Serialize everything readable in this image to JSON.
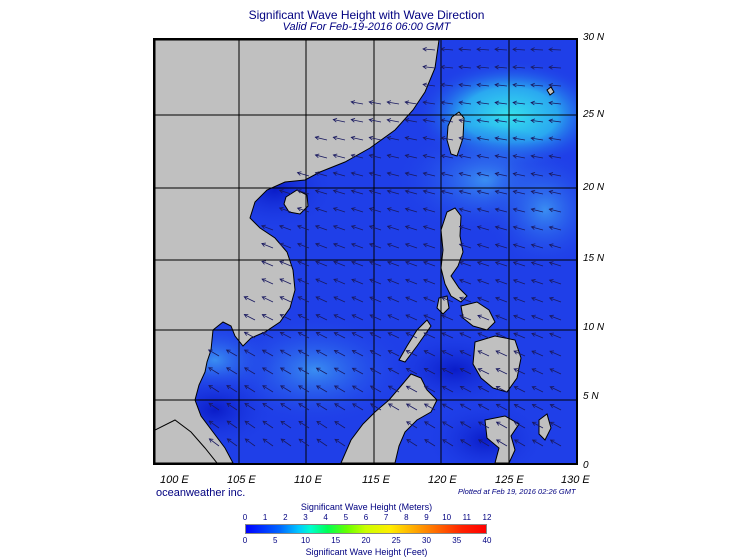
{
  "title": "Significant Wave Height with Wave Direction",
  "subtitle": "Valid For Feb-19-2016 06:00 GMT",
  "lat_labels": [
    "30 N",
    "25 N",
    "20 N",
    "15 N",
    "10 N",
    "5 N",
    "0"
  ],
  "lon_labels": [
    "100 E",
    "105 E",
    "110 E",
    "115 E",
    "120 E",
    "125 E",
    "130 E"
  ],
  "brand": "oceanweather inc.",
  "plotted": "Plotted at Feb 19, 2016 02:26 GMT",
  "legend": {
    "meters_title": "Significant Wave Height (Meters)",
    "meters_ticks": [
      "0",
      "1",
      "2",
      "3",
      "4",
      "5",
      "6",
      "7",
      "8",
      "9",
      "10",
      "11",
      "12"
    ],
    "feet_title": "Significant Wave Height (Feet)",
    "feet_ticks": [
      "0",
      "5",
      "10",
      "15",
      "20",
      "25",
      "30",
      "35",
      "40"
    ]
  },
  "colors": {
    "ocean": "#1f3fe8",
    "ocean_calm": "#0c2ed8",
    "ocean_high": "#2f7df2",
    "land": "#c0c0c0",
    "arrow": "#1a1a60",
    "title": "#000080"
  },
  "map_extent": {
    "lon": [
      100,
      130
    ],
    "lat": [
      0,
      30
    ]
  }
}
